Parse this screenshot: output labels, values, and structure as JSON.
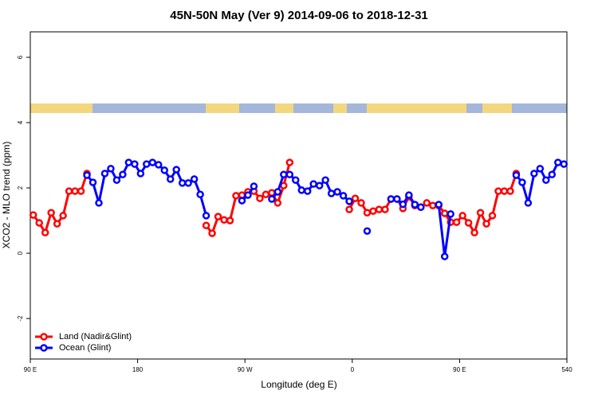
{
  "chart_data": {
    "type": "line",
    "title": "45N-50N May (Ver 9)   2014-09-06 to 2018-12-31",
    "x_label": "Longitude (deg E)",
    "y_label": "XCO2 - MLO trend (ppm)",
    "xlim": [
      90,
      540
    ],
    "ylim": [
      -3.24,
      6.78
    ],
    "xticks": [
      {
        "value": 90,
        "label": "90 E"
      },
      180,
      {
        "value": 270,
        "label": "90 W"
      },
      {
        "value": 360,
        "label": "0"
      },
      {
        "value": 450,
        "label": "90 E"
      },
      540
    ],
    "yticks": [
      -2,
      0,
      2,
      4,
      6
    ],
    "legend": "bottom-left",
    "series": [
      {
        "name": "Land (Nadir&Glint)",
        "color": "#ff0000",
        "x": [
          92.5,
          97.5,
          102.5,
          107.5,
          112.5,
          117.5,
          122.5,
          127.5,
          132.5,
          137.5,
          142.5,
          237.5,
          242.5,
          247.5,
          252.5,
          257.5,
          262.5,
          267.5,
          272.5,
          277.5,
          282.5,
          287.5,
          292.5,
          297.5,
          302.5,
          307.5,
          312.5,
          357.5,
          362.5,
          367.5,
          372.5,
          377.5,
          382.5,
          387.5,
          392.5,
          397.5,
          402.5,
          407.5,
          412.5,
          417.5,
          422.5,
          427.5,
          432.5,
          437.5,
          442.5,
          447.5,
          452.5,
          457.5,
          462.5,
          467.5,
          472.5,
          477.5,
          482.5,
          487.5,
          492.5,
          497.5
        ],
        "values": [
          1.17,
          0.93,
          0.63,
          1.24,
          0.9,
          1.15,
          1.9,
          1.9,
          1.9,
          2.44,
          null,
          0.85,
          0.61,
          1.12,
          1.02,
          1.0,
          1.76,
          1.78,
          1.88,
          1.9,
          1.68,
          1.8,
          1.85,
          1.54,
          2.07,
          2.78,
          null,
          1.34,
          1.68,
          1.54,
          1.24,
          1.29,
          1.34,
          1.34,
          1.66,
          1.66,
          1.37,
          1.73,
          1.46,
          1.41,
          1.54,
          1.46,
          1.46,
          1.22,
          0.95,
          0.95,
          1.15,
          0.93,
          0.63,
          1.24,
          0.9,
          1.15,
          1.9,
          1.9,
          1.9,
          2.44
        ]
      },
      {
        "name": "Ocean (Glint)",
        "color": "#0000ff",
        "x": [
          137.5,
          142.5,
          147.5,
          152.5,
          157.5,
          162.5,
          167.5,
          172.5,
          177.5,
          182.5,
          187.5,
          192.5,
          197.5,
          202.5,
          207.5,
          212.5,
          217.5,
          222.5,
          227.5,
          232.5,
          237.5,
          242.5,
          267.5,
          272.5,
          277.5,
          282.5,
          292.5,
          297.5,
          302.5,
          307.5,
          312.5,
          317.5,
          322.5,
          327.5,
          332.5,
          337.5,
          342.5,
          347.5,
          352.5,
          357.5,
          362.5,
          372.5,
          377.5,
          392.5,
          397.5,
          402.5,
          407.5,
          412.5,
          417.5,
          422.5,
          432.5,
          437.5,
          442.5,
          447.5,
          497.5,
          502.5,
          507.5,
          512.5,
          517.5,
          522.5,
          527.5,
          532.5,
          537.5
        ],
        "values": [
          2.39,
          2.17,
          1.54,
          2.44,
          2.59,
          2.24,
          2.41,
          2.78,
          2.73,
          2.44,
          2.73,
          2.78,
          2.71,
          2.54,
          2.27,
          2.56,
          2.15,
          2.15,
          2.27,
          1.8,
          1.15,
          null,
          1.61,
          1.78,
          2.05,
          null,
          1.66,
          1.88,
          2.41,
          2.41,
          2.24,
          1.93,
          1.9,
          2.12,
          2.07,
          2.24,
          1.83,
          1.88,
          1.76,
          1.59,
          null,
          0.68,
          null,
          1.66,
          1.66,
          1.5,
          1.78,
          1.49,
          1.41,
          null,
          1.49,
          -0.1,
          1.2,
          null,
          2.39,
          2.17,
          1.54,
          2.44,
          2.59,
          2.24,
          2.41,
          2.78,
          2.73
        ]
      }
    ]
  }
}
